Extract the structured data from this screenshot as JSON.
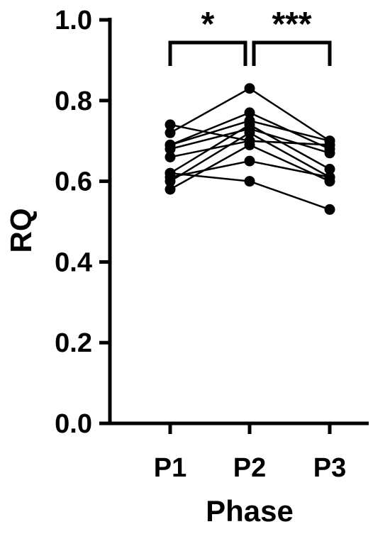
{
  "chart_data": {
    "type": "scatter",
    "style": "paired-dot-plot",
    "xlabel": "Phase",
    "ylabel": "RQ",
    "categories": [
      "P1",
      "P2",
      "P3"
    ],
    "ylim": [
      0,
      1.0
    ],
    "yticks": [
      0.0,
      0.2,
      0.4,
      0.6,
      0.8,
      1.0
    ],
    "ytick_labels": [
      "0.0",
      "0.2",
      "0.4",
      "0.6",
      "0.8",
      "1.0"
    ],
    "grid": false,
    "legend": "none",
    "series": [
      {
        "values": [
          0.74,
          0.7,
          0.69
        ]
      },
      {
        "values": [
          0.72,
          0.83,
          0.7
        ]
      },
      {
        "values": [
          0.69,
          0.75,
          0.7
        ]
      },
      {
        "values": [
          0.69,
          0.77,
          0.68
        ]
      },
      {
        "values": [
          0.68,
          0.73,
          0.67
        ]
      },
      {
        "values": [
          0.66,
          0.7,
          0.69
        ]
      },
      {
        "values": [
          0.62,
          0.74,
          0.63
        ]
      },
      {
        "values": [
          0.61,
          0.65,
          0.61
        ]
      },
      {
        "values": [
          0.6,
          0.72,
          0.61
        ]
      },
      {
        "values": [
          0.58,
          0.69,
          0.6
        ]
      },
      {
        "values": [
          0.62,
          0.6,
          0.53
        ]
      }
    ],
    "annotations": [
      {
        "from": "P1",
        "to": "P2",
        "label": "*"
      },
      {
        "from": "P2",
        "to": "P3",
        "label": "***"
      }
    ],
    "colors": {
      "marker": "#000000",
      "line": "#000000",
      "axis": "#000000"
    }
  }
}
